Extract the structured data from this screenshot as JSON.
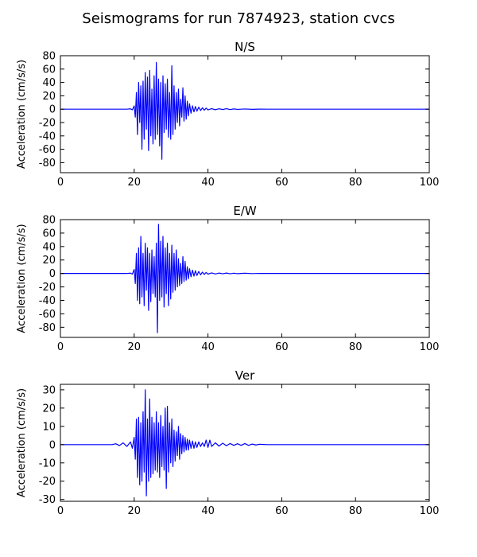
{
  "figure": {
    "suptitle": "Seismograms for run 7874923, station cvcs"
  },
  "chart_data": [
    {
      "type": "line",
      "title": "N/S",
      "xlabel": "",
      "ylabel": "Acceleration (cm/s/s)",
      "xlim": [
        0,
        100
      ],
      "ylim": [
        -95,
        80
      ],
      "xticks": [
        0,
        20,
        40,
        60,
        80,
        100
      ],
      "yticks": [
        80,
        60,
        40,
        20,
        0,
        -20,
        -40,
        -60,
        -80
      ],
      "grid": false,
      "color": "#0000ff",
      "series": [
        {
          "x": [
            0,
            15,
            18,
            19,
            19.5,
            20,
            20.3,
            20.6,
            20.9,
            21.2,
            21.5,
            21.8,
            22.1,
            22.4,
            22.7,
            23.0,
            23.3,
            23.6,
            23.9,
            24.2,
            24.5,
            24.8,
            25.1,
            25.4,
            25.7,
            26.0,
            26.3,
            26.6,
            26.9,
            27.2,
            27.5,
            27.8,
            28.1,
            28.4,
            28.7,
            29.0,
            29.3,
            29.6,
            29.9,
            30.2,
            30.5,
            30.8,
            31.1,
            31.4,
            31.7,
            32.0,
            32.3,
            32.6,
            32.9,
            33.2,
            33.5,
            33.8,
            34.1,
            34.4,
            34.7,
            35.0,
            35.4,
            35.8,
            36.2,
            36.6,
            37.0,
            37.5,
            38.0,
            38.5,
            39.0,
            39.5,
            40.0,
            41.0,
            42.0,
            43.0,
            44.0,
            45.0,
            46.0,
            47.0,
            48.0,
            50.0,
            52.0,
            54.0,
            56.0,
            100
          ],
          "y": [
            0,
            0,
            0,
            0.5,
            -1,
            5,
            -12,
            25,
            -38,
            40,
            -20,
            35,
            -60,
            42,
            -45,
            55,
            -30,
            48,
            -62,
            58,
            -40,
            30,
            -52,
            50,
            -45,
            70,
            -38,
            45,
            -55,
            40,
            -75,
            50,
            -35,
            38,
            -30,
            45,
            -42,
            25,
            -45,
            65,
            -38,
            35,
            -30,
            25,
            -20,
            30,
            -25,
            15,
            -12,
            32,
            -18,
            20,
            -15,
            12,
            -10,
            8,
            -6,
            5,
            -4,
            4,
            -3,
            3,
            -2,
            2,
            -1.5,
            1.5,
            -1,
            0.8,
            -0.8,
            0.6,
            -0.5,
            0.8,
            -0.6,
            0.4,
            -0.3,
            0.3,
            -0.2,
            0.1,
            0,
            0
          ]
        }
      ]
    },
    {
      "type": "line",
      "title": "E/W",
      "xlabel": "",
      "ylabel": "Acceleration (cm/s/s)",
      "xlim": [
        0,
        100
      ],
      "ylim": [
        -95,
        80
      ],
      "xticks": [
        0,
        20,
        40,
        60,
        80,
        100
      ],
      "yticks": [
        80,
        60,
        40,
        20,
        0,
        -20,
        -40,
        -60,
        -80
      ],
      "grid": false,
      "color": "#0000ff",
      "series": [
        {
          "x": [
            0,
            15,
            18,
            19,
            19.5,
            20,
            20.3,
            20.6,
            20.9,
            21.2,
            21.5,
            21.8,
            22.1,
            22.4,
            22.7,
            23.0,
            23.3,
            23.6,
            23.9,
            24.2,
            24.5,
            24.8,
            25.1,
            25.4,
            25.7,
            26.0,
            26.3,
            26.6,
            26.9,
            27.2,
            27.5,
            27.8,
            28.1,
            28.4,
            28.7,
            29.0,
            29.3,
            29.6,
            29.9,
            30.2,
            30.5,
            30.8,
            31.1,
            31.4,
            31.7,
            32.0,
            32.3,
            32.6,
            32.9,
            33.2,
            33.5,
            33.8,
            34.1,
            34.4,
            34.7,
            35.0,
            35.4,
            35.8,
            36.2,
            36.6,
            37.0,
            37.5,
            38.0,
            38.5,
            39.0,
            39.5,
            40.0,
            41.0,
            42.0,
            43.0,
            44.0,
            45.0,
            46.0,
            47.0,
            48.0,
            50.0,
            52.0,
            54.0,
            56.0,
            100
          ],
          "y": [
            0,
            0,
            0,
            0.5,
            -1,
            6,
            -15,
            30,
            -40,
            38,
            -45,
            55,
            -35,
            30,
            -48,
            45,
            -25,
            38,
            -55,
            30,
            -42,
            35,
            -30,
            25,
            -35,
            45,
            -88,
            73,
            -40,
            48,
            -35,
            55,
            -50,
            38,
            -30,
            45,
            -48,
            30,
            -38,
            42,
            -28,
            30,
            -25,
            35,
            -20,
            22,
            -18,
            15,
            -15,
            25,
            -12,
            18,
            -10,
            10,
            -8,
            7,
            -5,
            5,
            -4,
            4,
            -3,
            3,
            -2,
            2,
            -1.5,
            1.5,
            -1,
            0.8,
            -0.8,
            0.6,
            -0.5,
            0.6,
            -0.5,
            0.4,
            -0.3,
            0.3,
            -0.2,
            0.1,
            0,
            0
          ]
        }
      ]
    },
    {
      "type": "line",
      "title": "Ver",
      "xlabel": "",
      "ylabel": "Acceleration (cm/s/s)",
      "xlim": [
        0,
        100
      ],
      "ylim": [
        -31,
        33
      ],
      "xticks": [
        0,
        20,
        40,
        60,
        80,
        100
      ],
      "yticks": [
        30,
        20,
        10,
        0,
        -10,
        -20,
        -30
      ],
      "grid": false,
      "color": "#0000ff",
      "series": [
        {
          "x": [
            0,
            14,
            15,
            16,
            17,
            18,
            19,
            19.5,
            20,
            20.3,
            20.6,
            20.9,
            21.2,
            21.5,
            21.8,
            22.1,
            22.4,
            22.7,
            23.0,
            23.3,
            23.6,
            23.9,
            24.2,
            24.5,
            24.8,
            25.1,
            25.4,
            25.7,
            26.0,
            26.3,
            26.6,
            26.9,
            27.2,
            27.5,
            27.8,
            28.1,
            28.4,
            28.7,
            29.0,
            29.3,
            29.6,
            29.9,
            30.2,
            30.5,
            30.8,
            31.1,
            31.4,
            31.7,
            32.0,
            32.3,
            32.6,
            32.9,
            33.2,
            33.5,
            33.8,
            34.1,
            34.4,
            34.7,
            35.0,
            35.4,
            35.8,
            36.2,
            36.6,
            37.0,
            37.5,
            38.0,
            38.5,
            39.0,
            39.5,
            40.0,
            40.5,
            41.0,
            42.0,
            43.0,
            44.0,
            45.0,
            46.0,
            47.0,
            48.0,
            49.0,
            50.0,
            51.0,
            52.0,
            53.0,
            54.0,
            56.0,
            100
          ],
          "y": [
            0,
            0,
            0.5,
            -0.5,
            1,
            -1,
            1.5,
            -2,
            4,
            -8,
            14,
            -18,
            15,
            -22,
            12,
            -20,
            18,
            -15,
            30,
            -28,
            14,
            -20,
            25,
            -18,
            15,
            -16,
            12,
            -14,
            18,
            -15,
            12,
            -18,
            16,
            -12,
            10,
            -14,
            20,
            -24,
            21,
            -15,
            12,
            -10,
            14,
            -12,
            8,
            -9,
            7,
            -6,
            10,
            -8,
            6,
            -5,
            5,
            -4,
            4,
            -3,
            3,
            -3,
            2.5,
            -2,
            2,
            -2,
            1.5,
            -1.5,
            1.5,
            -1,
            1,
            -1,
            2.5,
            -1.5,
            2.5,
            -1,
            1,
            -0.8,
            0.8,
            -0.6,
            0.6,
            -0.4,
            0.5,
            -0.4,
            0.6,
            -0.4,
            0.3,
            -0.2,
            0.2,
            0,
            0
          ]
        }
      ]
    }
  ]
}
